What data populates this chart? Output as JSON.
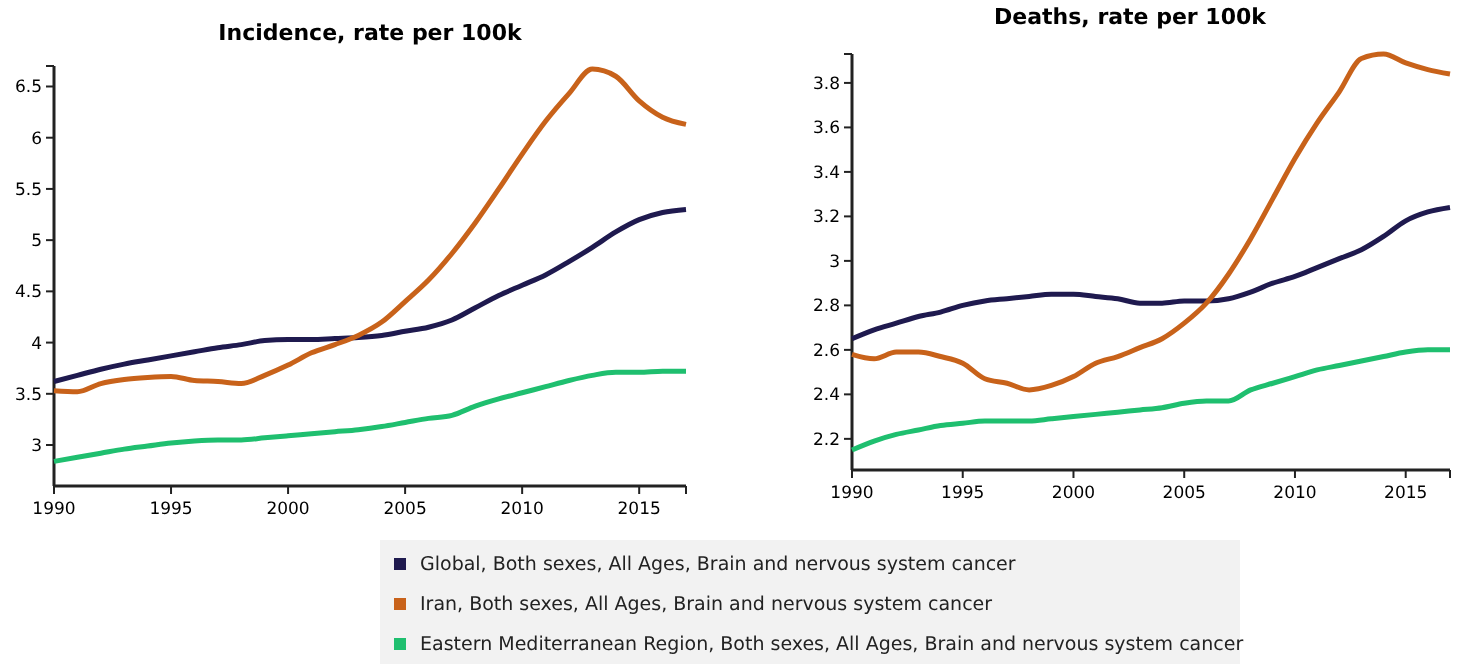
{
  "chart_data": [
    {
      "type": "line",
      "title": "Incidence, rate per 100k",
      "x": [
        1990,
        1991,
        1992,
        1993,
        1994,
        1995,
        1996,
        1997,
        1998,
        1999,
        2000,
        2001,
        2002,
        2003,
        2004,
        2005,
        2006,
        2007,
        2008,
        2009,
        2010,
        2011,
        2012,
        2013,
        2014,
        2015,
        2016,
        2017
      ],
      "xlim": [
        1990,
        2017
      ],
      "xticks": [
        1990,
        1995,
        2000,
        2005,
        2010,
        2015
      ],
      "ylim": [
        2.6,
        6.7
      ],
      "yticks": [
        3,
        3.5,
        4,
        4.5,
        5,
        5.5,
        6,
        6.5
      ],
      "legend": "bottom",
      "grid": false,
      "series": [
        {
          "name": "Global, Both sexes, All Ages, Brain and nervous system cancer",
          "color": "#1f1a4f",
          "values": [
            3.62,
            3.68,
            3.74,
            3.79,
            3.83,
            3.87,
            3.91,
            3.95,
            3.98,
            4.02,
            4.03,
            4.03,
            4.04,
            4.05,
            4.07,
            4.11,
            4.15,
            4.22,
            4.34,
            4.46,
            4.56,
            4.66,
            4.79,
            4.93,
            5.08,
            5.2,
            5.27,
            5.3
          ]
        },
        {
          "name": "Iran, Both sexes, All Ages, Brain and nervous system cancer",
          "color": "#c8621a",
          "values": [
            3.53,
            3.52,
            3.6,
            3.64,
            3.66,
            3.67,
            3.63,
            3.62,
            3.6,
            3.68,
            3.78,
            3.9,
            3.98,
            4.07,
            4.2,
            4.4,
            4.61,
            4.87,
            5.17,
            5.5,
            5.84,
            6.16,
            6.43,
            6.67,
            6.6,
            6.36,
            6.2,
            6.13
          ]
        },
        {
          "name": "Eastern Mediterranean Region, Both sexes, All Ages, Brain and nervous system cancer",
          "color": "#1fbf6f",
          "values": [
            2.84,
            2.88,
            2.92,
            2.96,
            2.99,
            3.02,
            3.04,
            3.05,
            3.05,
            3.07,
            3.09,
            3.11,
            3.13,
            3.15,
            3.18,
            3.22,
            3.26,
            3.29,
            3.38,
            3.45,
            3.51,
            3.57,
            3.63,
            3.68,
            3.71,
            3.71,
            3.72,
            3.72
          ]
        }
      ]
    },
    {
      "type": "line",
      "title": "Deaths, rate per 100k",
      "x": [
        1990,
        1991,
        1992,
        1993,
        1994,
        1995,
        1996,
        1997,
        1998,
        1999,
        2000,
        2001,
        2002,
        2003,
        2004,
        2005,
        2006,
        2007,
        2008,
        2009,
        2010,
        2011,
        2012,
        2013,
        2014,
        2015,
        2016,
        2017
      ],
      "xlim": [
        1990,
        2017
      ],
      "xticks": [
        1990,
        1995,
        2000,
        2005,
        2010,
        2015
      ],
      "ylim": [
        2.06,
        3.93
      ],
      "yticks": [
        2.2,
        2.4,
        2.6,
        2.8,
        {
          "value": 3,
          "label": "3"
        },
        3.2,
        3.4,
        3.6,
        3.8
      ],
      "grid": false,
      "series": [
        {
          "color": "#1f1a4f",
          "values": [
            2.65,
            2.69,
            2.72,
            2.75,
            2.77,
            2.8,
            2.82,
            2.83,
            2.84,
            2.85,
            2.85,
            2.84,
            2.83,
            2.81,
            2.81,
            2.82,
            2.82,
            2.83,
            2.86,
            2.9,
            2.93,
            2.97,
            3.01,
            3.05,
            3.11,
            3.18,
            3.22,
            3.24
          ]
        },
        {
          "color": "#c8621a",
          "values": [
            2.58,
            2.56,
            2.59,
            2.59,
            2.57,
            2.54,
            2.47,
            2.45,
            2.42,
            2.44,
            2.48,
            2.54,
            2.57,
            2.61,
            2.65,
            2.72,
            2.81,
            2.94,
            3.1,
            3.28,
            3.46,
            3.62,
            3.76,
            3.91,
            3.93,
            3.89,
            3.86,
            3.84
          ]
        },
        {
          "color": "#1fbf6f",
          "values": [
            2.15,
            2.19,
            2.22,
            2.24,
            2.26,
            2.27,
            2.28,
            2.28,
            2.28,
            2.29,
            2.3,
            2.31,
            2.32,
            2.33,
            2.34,
            2.36,
            2.37,
            2.37,
            2.42,
            2.45,
            2.48,
            2.51,
            2.53,
            2.55,
            2.57,
            2.59,
            2.6,
            2.6
          ]
        }
      ]
    }
  ]
}
